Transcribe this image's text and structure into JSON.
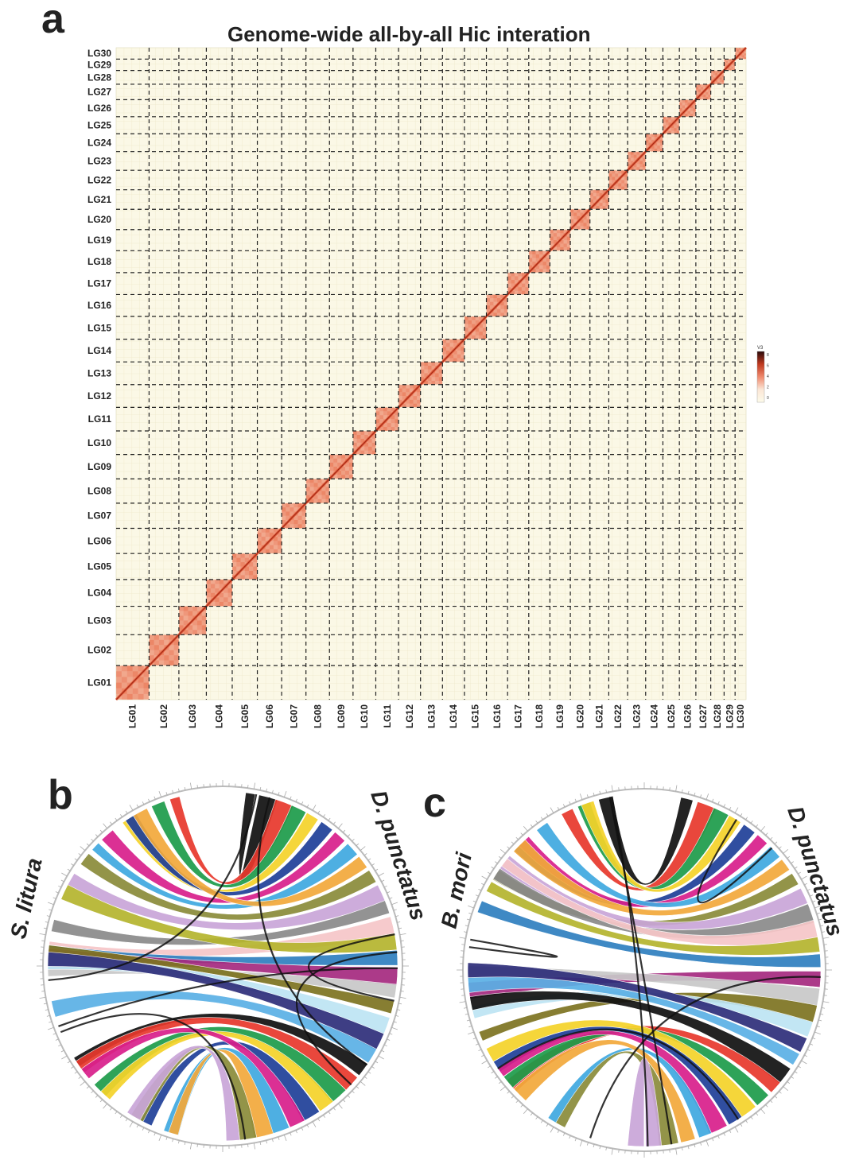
{
  "panel_a": {
    "letter": "a",
    "title": "Genome-wide all-by-all Hic interation",
    "lg_labels": [
      "LG01",
      "LG02",
      "LG03",
      "LG04",
      "LG05",
      "LG06",
      "LG07",
      "LG08",
      "LG09",
      "LG10",
      "LG11",
      "LG12",
      "LG13",
      "LG14",
      "LG15",
      "LG16",
      "LG17",
      "LG18",
      "LG19",
      "LG20",
      "LG21",
      "LG22",
      "LG23",
      "LG24",
      "LG25",
      "LG26",
      "LG27",
      "LG28",
      "LG29",
      "LG30"
    ],
    "lg_relative_sizes": [
      42,
      38,
      35,
      33,
      32,
      31,
      31,
      30,
      30,
      29,
      29,
      28,
      28,
      28,
      28,
      27,
      27,
      27,
      26,
      25,
      24,
      24,
      23,
      22,
      21,
      21,
      19,
      17,
      14,
      14
    ],
    "colorbar": {
      "label": "V3",
      "ticks": [
        "8",
        "6",
        "4",
        "2",
        "0"
      ],
      "colors": [
        "#2a0a0a",
        "#c0391f",
        "#f08a6e",
        "#fbe6d6",
        "#fdfbea"
      ]
    },
    "background_color": "#fbf8e6",
    "diag_color": "#e0502e"
  },
  "panel_b": {
    "letter": "b",
    "left_species": "S. litura",
    "right_species": "D. punctatus"
  },
  "panel_c": {
    "letter": "c",
    "left_species": "B. mori",
    "right_species": "D. punctatus"
  },
  "circos_palette": [
    "#111111",
    "#e8382c",
    "#1d9c4a",
    "#f5d32a",
    "#1f3f98",
    "#d81f8c",
    "#3fa9e0",
    "#f2a93b",
    "#8a8b3a",
    "#c9a6d8",
    "#8a8a8a",
    "#f6c6c8",
    "#b5b52e",
    "#2f7fc0",
    "#a52a7f",
    "#c8c8c8",
    "#7d7421",
    "#bde4f4",
    "#2e2e7a",
    "#5bb0e5"
  ]
}
